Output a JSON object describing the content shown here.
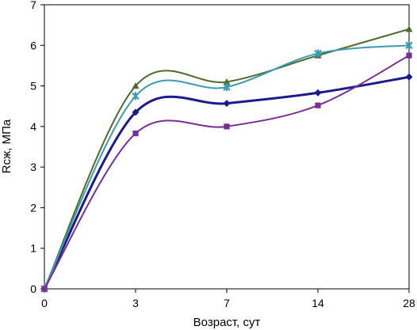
{
  "chart_data": {
    "type": "line",
    "smooth": true,
    "xlabel": "Возраст, сут",
    "ylabel": "Rсж, МПа",
    "categories": [
      "0",
      "3",
      "7",
      "14",
      "28"
    ],
    "ylim": [
      0,
      7
    ],
    "yticks": [
      0,
      1,
      2,
      3,
      4,
      5,
      6,
      7
    ],
    "grid": false,
    "legend": "none",
    "series": [
      {
        "values": [
          0,
          4.35,
          4.57,
          4.83,
          5.22
        ],
        "color": "#1c1a8c",
        "marker": "diamond",
        "line_width": 3
      },
      {
        "values": [
          0,
          5.0,
          5.1,
          5.75,
          6.4
        ],
        "color": "#4e6b2c",
        "marker": "triangle",
        "line_width": 2
      },
      {
        "values": [
          0,
          4.75,
          4.97,
          5.8,
          6.0
        ],
        "color": "#3b9bb4",
        "marker": "star",
        "line_width": 2
      },
      {
        "values": [
          0,
          3.83,
          4.0,
          4.52,
          5.75
        ],
        "color": "#7a2e93",
        "marker": "square",
        "line_width": 2
      }
    ]
  }
}
